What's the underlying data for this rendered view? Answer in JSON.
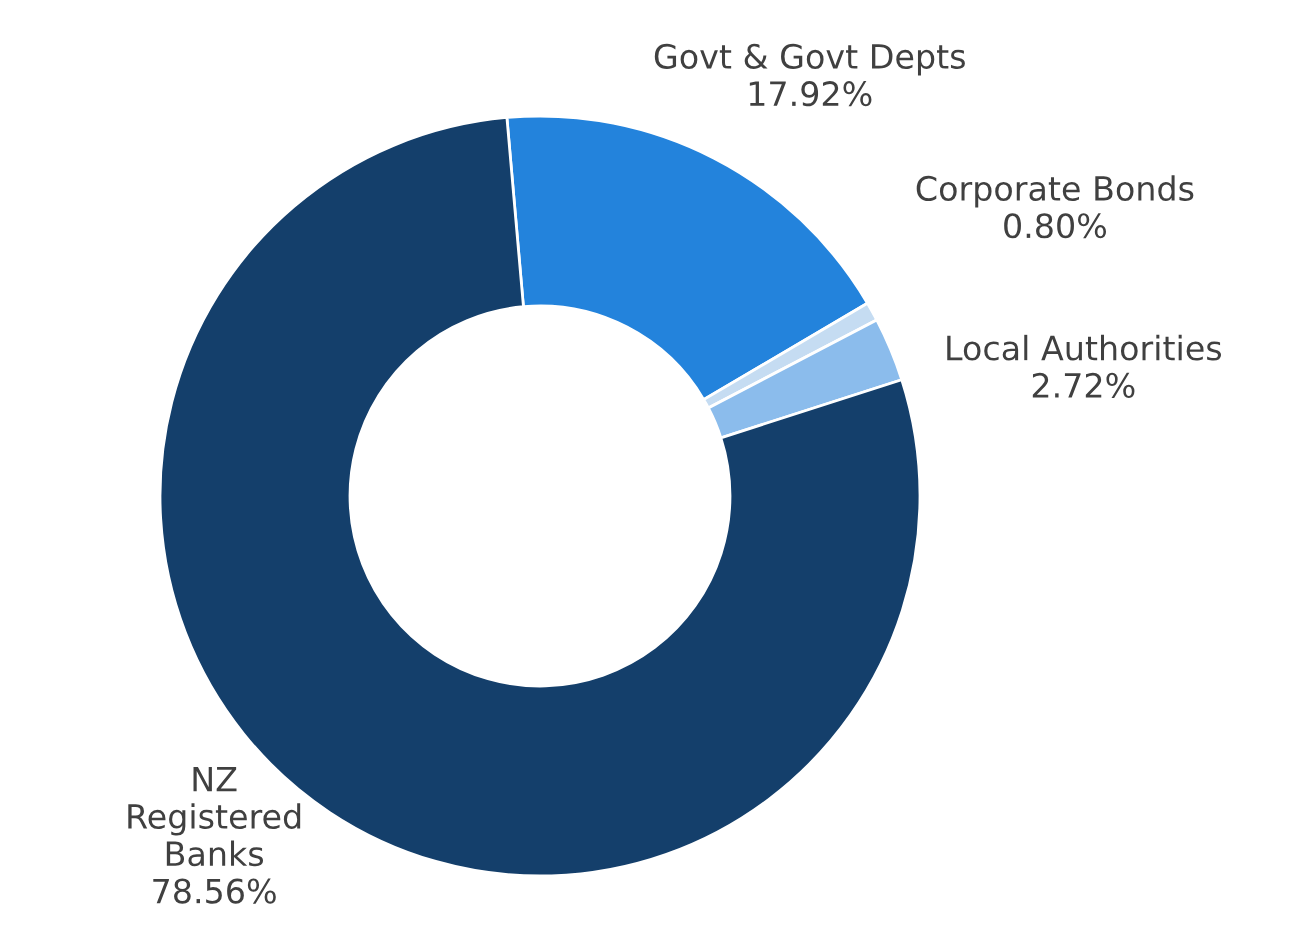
{
  "chart_data": {
    "type": "donut",
    "categories": [
      "Govt & Govt Depts",
      "Corporate Bonds",
      "Local Authorities",
      "NZ\nRegistered\nBanks"
    ],
    "values": [
      17.92,
      0.8,
      2.72,
      78.56
    ],
    "value_labels": [
      "17.92%",
      "0.80%",
      "2.72%",
      "78.56%"
    ],
    "colors": [
      "#2383dc",
      "#c5dcf2",
      "#8bbcec",
      "#143f6b"
    ],
    "legend": false
  }
}
